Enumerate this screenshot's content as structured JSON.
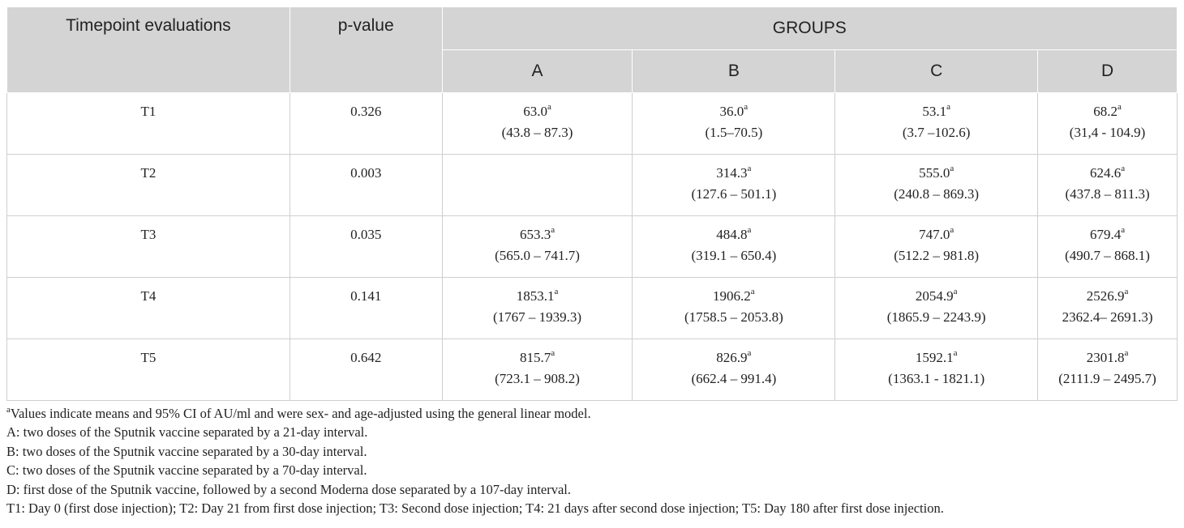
{
  "header": {
    "col_timepoint": "Timepoint evaluations",
    "col_pvalue": "p-value",
    "col_groups": "GROUPS",
    "groups": [
      "A",
      "B",
      "C",
      "D"
    ]
  },
  "rows": [
    {
      "label": "T1",
      "p": "0.326",
      "cells": [
        {
          "v": "63.0",
          "sup": "a",
          "ci": "(43.8 – 87.3)"
        },
        {
          "v": "36.0",
          "sup": "a",
          "ci": "(1.5–70.5)"
        },
        {
          "v": "53.1",
          "sup": "a",
          "ci": "(3.7 –102.6)"
        },
        {
          "v": "68.2",
          "sup": "a",
          "ci": "(31,4 - 104.9)"
        }
      ]
    },
    {
      "label": "T2",
      "p": "0.003",
      "cells": [
        {
          "v": "",
          "sup": "",
          "ci": ""
        },
        {
          "v": "314.3",
          "sup": "a",
          "ci": "(127.6 – 501.1)"
        },
        {
          "v": "555.0",
          "sup": "a",
          "ci": "(240.8 – 869.3)"
        },
        {
          "v": "624.6",
          "sup": "a",
          "ci": "(437.8 – 811.3)"
        }
      ]
    },
    {
      "label": "T3",
      "p": "0.035",
      "cells": [
        {
          "v": "653.3",
          "sup": "a",
          "ci": "(565.0 – 741.7)"
        },
        {
          "v": "484.8",
          "sup": "a",
          "ci": "(319.1 – 650.4)"
        },
        {
          "v": "747.0",
          "sup": "a",
          "ci": "(512.2 – 981.8)"
        },
        {
          "v": "679.4",
          "sup": "a",
          "ci": "(490.7 – 868.1)"
        }
      ]
    },
    {
      "label": "T4",
      "p": "0.141",
      "cells": [
        {
          "v": "1853.1",
          "sup": "a",
          "ci": "(1767 – 1939.3)"
        },
        {
          "v": "1906.2",
          "sup": "a",
          "ci": "(1758.5 – 2053.8)"
        },
        {
          "v": "2054.9",
          "sup": "a",
          "ci": "(1865.9 – 2243.9)"
        },
        {
          "v": "2526.9",
          "sup": "a",
          "ci": "2362.4– 2691.3)"
        }
      ]
    },
    {
      "label": "T5",
      "p": "0.642",
      "cells": [
        {
          "v": "815.7",
          "sup": "a",
          "ci": "(723.1 – 908.2)"
        },
        {
          "v": "826.9",
          "sup": "a",
          "ci": "(662.4 – 991.4)"
        },
        {
          "v": "1592.1",
          "sup": "a",
          "ci": "(1363.1 - 1821.1)"
        },
        {
          "v": "2301.8",
          "sup": "a",
          "ci": "(2111.9 – 2495.7)"
        }
      ]
    }
  ],
  "footnotes": {
    "first_sup": "a",
    "first_text": "Values indicate means and 95% CI of AU/ml and were sex- and age-adjusted using the general linear model.",
    "lines": [
      "A: two doses of the Sputnik vaccine separated by a 21-day interval.",
      "B: two doses of the Sputnik vaccine separated by a 30-day interval.",
      "C: two doses of the Sputnik vaccine separated by a 70-day interval.",
      "D: first dose of the Sputnik vaccine, followed by a second Moderna dose separated by a 107-day interval.",
      "T1: Day 0 (first dose injection); T2: Day 21 from first dose injection; T3: Second dose injection; T4: 21 days after second dose injection; T5: Day 180 after first dose injection."
    ]
  }
}
